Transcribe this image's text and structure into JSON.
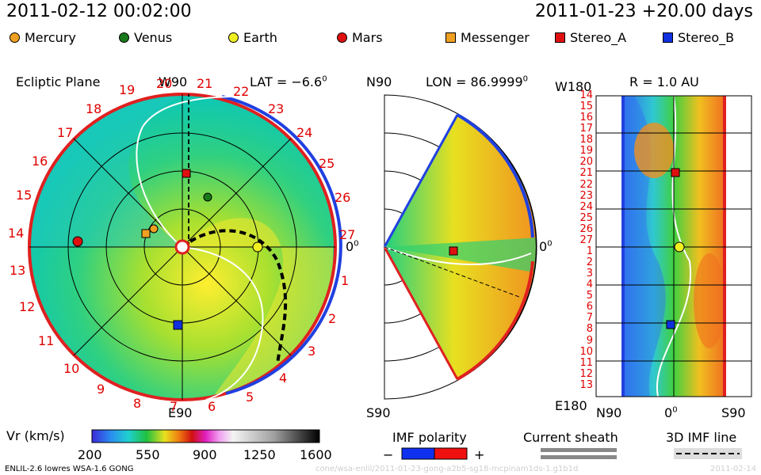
{
  "header": {
    "sim_time": "2011-02-12 00:02:00",
    "run_info": "2011-01-23 +20.00 days"
  },
  "legend": [
    {
      "name": "Mercury",
      "color": "#f0a020",
      "shape": "circle"
    },
    {
      "name": "Venus",
      "color": "#1a7a1a",
      "shape": "circle"
    },
    {
      "name": "Earth",
      "color": "#f0f020",
      "shape": "circle"
    },
    {
      "name": "Mars",
      "color": "#e01010",
      "shape": "circle"
    },
    {
      "name": "Messenger",
      "color": "#f0a020",
      "shape": "square"
    },
    {
      "name": "Stereo_A",
      "color": "#e01010",
      "shape": "square"
    },
    {
      "name": "Stereo_B",
      "color": "#1030e0",
      "shape": "square"
    }
  ],
  "panel_ecliptic": {
    "title": "Ecliptic Plane",
    "top": "W90",
    "bottom": "E90",
    "lat": "LAT = −6.6",
    "deg": "0",
    "right": "0",
    "carrington_left": [
      "20",
      "19",
      "18",
      "17",
      "16",
      "15",
      "14",
      "13",
      "12",
      "11",
      "10",
      "9",
      "8",
      "7",
      "6"
    ],
    "carrington_right": [
      "21",
      "22",
      "23",
      "24",
      "25",
      "26",
      "27",
      "1",
      "2",
      "3",
      "4",
      "5"
    ]
  },
  "panel_meridional": {
    "top": "N90",
    "bottom": "S90",
    "lon": "LON = 86.9999",
    "deg": "0",
    "right": "0"
  },
  "panel_latlon": {
    "radius": "R = 1.0 AU",
    "top_left": "W180",
    "bottom_left": "E180",
    "x_left": "N90",
    "x_mid": "0",
    "x_right": "S90",
    "y_ticks": [
      "14",
      "15",
      "16",
      "17",
      "18",
      "19",
      "20",
      "21",
      "22",
      "23",
      "24",
      "25",
      "26",
      "27",
      "1",
      "2",
      "3",
      "4",
      "5",
      "6",
      "7",
      "8",
      "9",
      "10",
      "11",
      "12",
      "13"
    ]
  },
  "colorbar": {
    "label": "Vr (km/s)",
    "ticks": [
      "200",
      "550",
      "900",
      "1250",
      "1600"
    ]
  },
  "imf": {
    "title": "IMF polarity",
    "minus": "−",
    "plus": "+"
  },
  "sheath": {
    "title": "Current sheath"
  },
  "imf3d": {
    "title": "3D IMF line"
  },
  "footer": {
    "model": "ENLIL-2.6 lowres WSA-1.6 GONG",
    "path": "cone/wsa-enlil/2011-01-23-gong-a2b5-sg18-mcpinam1ds-1.g1b1d",
    "date": "2011-02-14"
  }
}
